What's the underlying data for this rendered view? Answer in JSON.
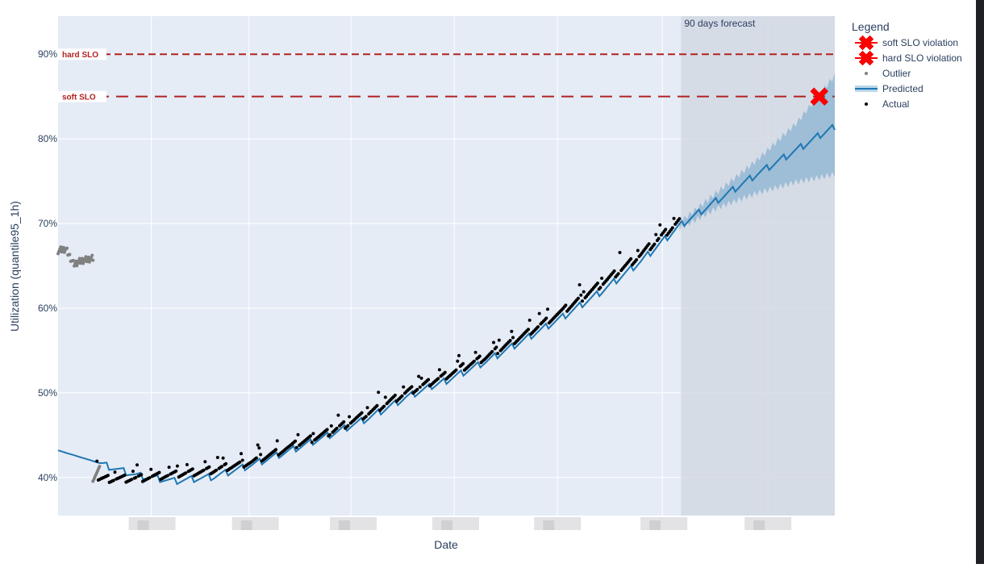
{
  "chart_data": {
    "type": "line",
    "title": "",
    "xlabel": "Date",
    "ylabel": "Utilization (quantile95_1h)",
    "x_tick_labels_redacted": true,
    "ylim": [
      35.5,
      94.5
    ],
    "y_ticks": [
      40,
      50,
      60,
      70,
      80,
      90
    ],
    "y_tick_suffix": "%",
    "grid": true,
    "legend": {
      "title": "Legend",
      "placement": "top-right",
      "items": [
        {
          "key": "soft_violation",
          "label": "soft SLO violation",
          "color": "#ff0000"
        },
        {
          "key": "hard_violation",
          "label": "hard SLO violation",
          "color": "#ff0000"
        },
        {
          "key": "outlier",
          "label": "Outlier",
          "color": "#808080"
        },
        {
          "key": "predicted",
          "label": "Predicted",
          "color": "#1f77b4"
        },
        {
          "key": "actual",
          "label": "Actual",
          "color": "#000000"
        }
      ]
    },
    "thresholds": [
      {
        "name": "hard SLO",
        "value": 90,
        "color": "#b22222"
      },
      {
        "name": "soft SLO",
        "value": 85,
        "color": "#b22222"
      }
    ],
    "forecast_region": {
      "label": "90 days forecast",
      "x_start": 0.802,
      "x_end": 1.0
    },
    "series": [
      {
        "name": "Predicted",
        "color": "#1f77b4",
        "x": [
          0.0,
          0.05,
          0.1,
          0.15,
          0.2,
          0.25,
          0.3,
          0.35,
          0.4,
          0.45,
          0.5,
          0.55,
          0.6,
          0.65,
          0.7,
          0.75,
          0.8,
          0.85,
          0.9,
          0.95,
          1.0
        ],
        "values": [
          43.2,
          41.8,
          40.3,
          39.6,
          40.1,
          41.5,
          43.2,
          45.0,
          47.0,
          49.5,
          51.5,
          53.7,
          56.3,
          59.0,
          62.0,
          65.5,
          69.7,
          72.8,
          75.8,
          78.6,
          81.5
        ]
      },
      {
        "name": "Confidence band",
        "color": "#1f77b4",
        "x": [
          0.8,
          0.85,
          0.9,
          0.95,
          1.0
        ],
        "upper": [
          70.1,
          73.8,
          77.5,
          81.8,
          87.5
        ],
        "lower": [
          69.4,
          71.9,
          73.6,
          74.9,
          75.8
        ]
      },
      {
        "name": "Actual",
        "color": "#000000",
        "x": [
          0.05,
          0.1,
          0.15,
          0.2,
          0.25,
          0.3,
          0.35,
          0.4,
          0.45,
          0.5,
          0.55,
          0.6,
          0.65,
          0.7,
          0.75,
          0.8
        ],
        "values": [
          39.8,
          39.9,
          40.3,
          40.9,
          41.9,
          43.6,
          45.4,
          47.6,
          50.1,
          52.1,
          54.2,
          56.9,
          59.6,
          62.9,
          66.3,
          70.3
        ]
      },
      {
        "name": "Outlier",
        "color": "#808080",
        "x": [
          0.0,
          0.01,
          0.02,
          0.03,
          0.045,
          0.055
        ],
        "values": [
          66.8,
          67.0,
          65.2,
          65.6,
          65.9,
          40.3
        ]
      }
    ],
    "violations": [
      {
        "name": "soft SLO violation",
        "x": 0.98,
        "value": 85.0
      }
    ]
  }
}
